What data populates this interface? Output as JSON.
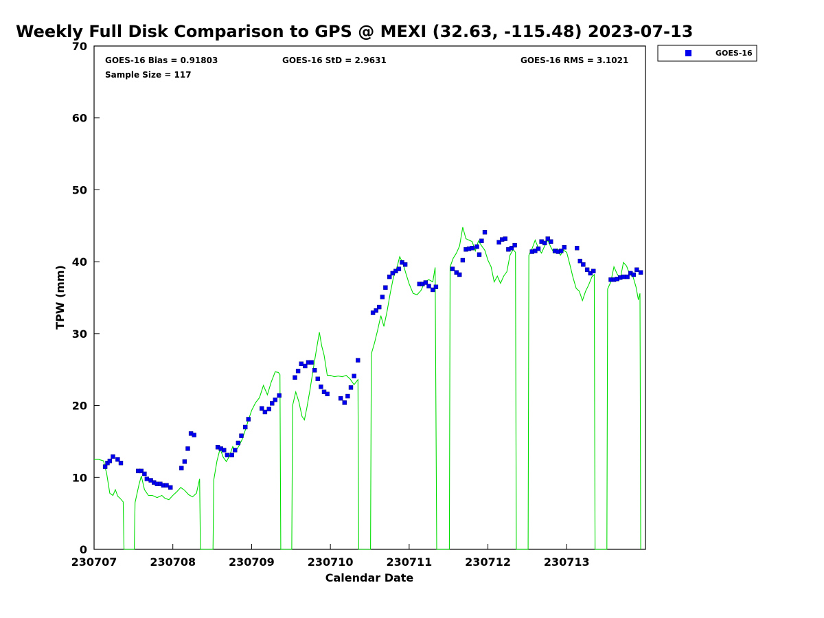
{
  "chart_data": {
    "type": "scatter",
    "title": "Weekly Full Disk Comparison to GPS @ MEXI (32.63, -115.48) 2023-07-13",
    "xlabel": "Calendar Date",
    "ylabel": "TPW (mm)",
    "xlim": [
      0,
      7
    ],
    "ylim": [
      0,
      70
    ],
    "x_ticks": [
      0,
      1,
      2,
      3,
      4,
      5,
      6
    ],
    "x_tick_labels": [
      "230707",
      "230708",
      "230709",
      "230710",
      "230711",
      "230712",
      "230713"
    ],
    "y_ticks": [
      0,
      10,
      20,
      30,
      40,
      50,
      60,
      70
    ],
    "y_tick_labels": [
      "0",
      "10",
      "20",
      "30",
      "40",
      "50",
      "60",
      "70"
    ],
    "stats": {
      "bias": "GOES-16 Bias = 0.91803",
      "std": "GOES-16 StD = 2.9631",
      "rms": "GOES-16 RMS = 3.1021",
      "sample": "Sample Size = 117"
    },
    "legend": {
      "label": "GOES-16",
      "placement": "outside top-right"
    },
    "colors": {
      "goes": "#0000ee",
      "gps": "#00dd00",
      "goes_edge": "#000066"
    },
    "series": [
      {
        "name": "GOES-16",
        "marker": "square",
        "points": [
          [
            0.14,
            11.5
          ],
          [
            0.17,
            12.0
          ],
          [
            0.2,
            12.3
          ],
          [
            0.24,
            12.9
          ],
          [
            0.3,
            12.5
          ],
          [
            0.34,
            12.0
          ],
          [
            0.56,
            10.9
          ],
          [
            0.6,
            10.9
          ],
          [
            0.64,
            10.5
          ],
          [
            0.67,
            9.8
          ],
          [
            0.72,
            9.6
          ],
          [
            0.76,
            9.3
          ],
          [
            0.8,
            9.1
          ],
          [
            0.84,
            9.1
          ],
          [
            0.88,
            8.9
          ],
          [
            0.92,
            8.9
          ],
          [
            0.97,
            8.6
          ],
          [
            1.11,
            11.3
          ],
          [
            1.15,
            12.2
          ],
          [
            1.19,
            14.0
          ],
          [
            1.23,
            16.1
          ],
          [
            1.27,
            15.9
          ],
          [
            1.57,
            14.2
          ],
          [
            1.61,
            14.0
          ],
          [
            1.65,
            13.8
          ],
          [
            1.69,
            13.1
          ],
          [
            1.75,
            13.1
          ],
          [
            1.79,
            13.8
          ],
          [
            1.83,
            14.8
          ],
          [
            1.87,
            15.8
          ],
          [
            1.92,
            17.0
          ],
          [
            1.96,
            18.1
          ],
          [
            2.13,
            19.6
          ],
          [
            2.17,
            19.1
          ],
          [
            2.22,
            19.5
          ],
          [
            2.26,
            20.3
          ],
          [
            2.3,
            20.8
          ],
          [
            2.35,
            21.4
          ],
          [
            2.55,
            23.9
          ],
          [
            2.59,
            24.8
          ],
          [
            2.63,
            25.8
          ],
          [
            2.68,
            25.5
          ],
          [
            2.72,
            26.0
          ],
          [
            2.76,
            26.0
          ],
          [
            2.8,
            24.9
          ],
          [
            2.84,
            23.7
          ],
          [
            2.88,
            22.6
          ],
          [
            2.92,
            21.9
          ],
          [
            2.96,
            21.6
          ],
          [
            3.13,
            21.0
          ],
          [
            3.18,
            20.4
          ],
          [
            3.22,
            21.3
          ],
          [
            3.26,
            22.5
          ],
          [
            3.3,
            24.1
          ],
          [
            3.35,
            26.3
          ],
          [
            3.54,
            32.9
          ],
          [
            3.58,
            33.2
          ],
          [
            3.62,
            33.7
          ],
          [
            3.66,
            35.1
          ],
          [
            3.7,
            36.4
          ],
          [
            3.75,
            37.9
          ],
          [
            3.79,
            38.4
          ],
          [
            3.83,
            38.7
          ],
          [
            3.87,
            39.0
          ],
          [
            3.91,
            39.9
          ],
          [
            3.95,
            39.6
          ],
          [
            4.13,
            36.9
          ],
          [
            4.17,
            36.9
          ],
          [
            4.21,
            37.1
          ],
          [
            4.25,
            36.6
          ],
          [
            4.3,
            36.1
          ],
          [
            4.34,
            36.5
          ],
          [
            4.55,
            39.0
          ],
          [
            4.6,
            38.5
          ],
          [
            4.64,
            38.2
          ],
          [
            4.68,
            40.2
          ],
          [
            4.72,
            41.7
          ],
          [
            4.76,
            41.8
          ],
          [
            4.8,
            41.9
          ],
          [
            4.86,
            42.1
          ],
          [
            4.89,
            41.0
          ],
          [
            4.92,
            42.9
          ],
          [
            4.96,
            44.1
          ],
          [
            5.14,
            42.7
          ],
          [
            5.18,
            43.1
          ],
          [
            5.22,
            43.2
          ],
          [
            5.26,
            41.7
          ],
          [
            5.3,
            41.9
          ],
          [
            5.34,
            42.3
          ],
          [
            5.56,
            41.4
          ],
          [
            5.6,
            41.5
          ],
          [
            5.64,
            41.8
          ],
          [
            5.68,
            42.8
          ],
          [
            5.72,
            42.6
          ],
          [
            5.76,
            43.2
          ],
          [
            5.8,
            42.8
          ],
          [
            5.85,
            41.5
          ],
          [
            5.89,
            41.4
          ],
          [
            5.93,
            41.5
          ],
          [
            5.97,
            42.0
          ],
          [
            6.13,
            41.9
          ],
          [
            6.17,
            40.1
          ],
          [
            6.21,
            39.6
          ],
          [
            6.26,
            38.9
          ],
          [
            6.3,
            38.4
          ],
          [
            6.34,
            38.7
          ],
          [
            6.56,
            37.5
          ],
          [
            6.6,
            37.5
          ],
          [
            6.64,
            37.6
          ],
          [
            6.68,
            37.8
          ],
          [
            6.72,
            37.9
          ],
          [
            6.77,
            37.9
          ],
          [
            6.81,
            38.4
          ],
          [
            6.85,
            38.2
          ],
          [
            6.89,
            38.9
          ],
          [
            6.94,
            38.5
          ]
        ]
      },
      {
        "name": "GPS",
        "marker": "line",
        "points": [
          [
            0.0,
            12.5
          ],
          [
            0.06,
            12.5
          ],
          [
            0.12,
            12.3
          ],
          [
            0.16,
            10.5
          ],
          [
            0.2,
            7.8
          ],
          [
            0.24,
            7.5
          ],
          [
            0.27,
            8.3
          ],
          [
            0.3,
            7.4
          ],
          [
            0.33,
            7.1
          ],
          [
            0.37,
            6.6
          ],
          [
            0.38,
            0
          ],
          [
            0.51,
            0
          ],
          [
            0.52,
            6.5
          ],
          [
            0.57,
            9.0
          ],
          [
            0.6,
            10.2
          ],
          [
            0.64,
            8.3
          ],
          [
            0.69,
            7.5
          ],
          [
            0.74,
            7.5
          ],
          [
            0.8,
            7.2
          ],
          [
            0.86,
            7.5
          ],
          [
            0.9,
            7.1
          ],
          [
            0.95,
            6.9
          ],
          [
            1.0,
            7.5
          ],
          [
            1.05,
            8.0
          ],
          [
            1.1,
            8.6
          ],
          [
            1.15,
            8.2
          ],
          [
            1.2,
            7.6
          ],
          [
            1.25,
            7.3
          ],
          [
            1.3,
            7.8
          ],
          [
            1.34,
            9.8
          ],
          [
            1.35,
            0
          ],
          [
            1.51,
            0
          ],
          [
            1.52,
            9.7
          ],
          [
            1.56,
            12.3
          ],
          [
            1.6,
            14.0
          ],
          [
            1.64,
            12.8
          ],
          [
            1.68,
            12.2
          ],
          [
            1.72,
            13.0
          ],
          [
            1.76,
            14.3
          ],
          [
            1.8,
            13.7
          ],
          [
            1.84,
            14.4
          ],
          [
            1.88,
            15.3
          ],
          [
            1.92,
            16.6
          ],
          [
            1.96,
            18.0
          ],
          [
            2.0,
            19.3
          ],
          [
            2.05,
            20.4
          ],
          [
            2.1,
            21.1
          ],
          [
            2.15,
            22.8
          ],
          [
            2.2,
            21.5
          ],
          [
            2.25,
            23.3
          ],
          [
            2.3,
            24.7
          ],
          [
            2.34,
            24.6
          ],
          [
            2.36,
            24.3
          ],
          [
            2.37,
            0
          ],
          [
            2.51,
            0
          ],
          [
            2.52,
            20.0
          ],
          [
            2.56,
            21.9
          ],
          [
            2.6,
            20.5
          ],
          [
            2.64,
            18.5
          ],
          [
            2.67,
            18.0
          ],
          [
            2.7,
            19.6
          ],
          [
            2.74,
            22.1
          ],
          [
            2.78,
            24.9
          ],
          [
            2.82,
            27.6
          ],
          [
            2.86,
            30.2
          ],
          [
            2.89,
            28.3
          ],
          [
            2.92,
            27.0
          ],
          [
            2.96,
            24.2
          ],
          [
            3.0,
            24.2
          ],
          [
            3.05,
            24.0
          ],
          [
            3.1,
            24.1
          ],
          [
            3.15,
            24.0
          ],
          [
            3.2,
            24.2
          ],
          [
            3.25,
            23.7
          ],
          [
            3.3,
            22.9
          ],
          [
            3.35,
            23.6
          ],
          [
            3.36,
            0
          ],
          [
            3.51,
            0
          ],
          [
            3.52,
            27.2
          ],
          [
            3.56,
            28.7
          ],
          [
            3.6,
            30.5
          ],
          [
            3.64,
            32.5
          ],
          [
            3.68,
            31.0
          ],
          [
            3.72,
            33.1
          ],
          [
            3.76,
            35.6
          ],
          [
            3.8,
            37.8
          ],
          [
            3.84,
            39.0
          ],
          [
            3.88,
            40.7
          ],
          [
            3.92,
            39.8
          ],
          [
            3.96,
            38.3
          ],
          [
            4.0,
            36.9
          ],
          [
            4.05,
            35.6
          ],
          [
            4.1,
            35.4
          ],
          [
            4.15,
            36.0
          ],
          [
            4.2,
            37.2
          ],
          [
            4.25,
            37.5
          ],
          [
            4.3,
            37.2
          ],
          [
            4.33,
            39.2
          ],
          [
            4.35,
            0
          ],
          [
            4.51,
            0
          ],
          [
            4.52,
            39.3
          ],
          [
            4.56,
            40.5
          ],
          [
            4.6,
            41.2
          ],
          [
            4.64,
            42.2
          ],
          [
            4.68,
            44.8
          ],
          [
            4.72,
            43.2
          ],
          [
            4.76,
            43.0
          ],
          [
            4.8,
            42.8
          ],
          [
            4.84,
            41.5
          ],
          [
            4.88,
            42.9
          ],
          [
            4.92,
            42.2
          ],
          [
            4.96,
            41.6
          ],
          [
            5.0,
            40.2
          ],
          [
            5.04,
            39.3
          ],
          [
            5.08,
            37.2
          ],
          [
            5.12,
            38.0
          ],
          [
            5.16,
            37.0
          ],
          [
            5.2,
            38.0
          ],
          [
            5.24,
            38.6
          ],
          [
            5.28,
            40.9
          ],
          [
            5.32,
            41.7
          ],
          [
            5.35,
            41.3
          ],
          [
            5.36,
            0
          ],
          [
            5.51,
            0
          ],
          [
            5.52,
            40.9
          ],
          [
            5.56,
            41.8
          ],
          [
            5.6,
            43.0
          ],
          [
            5.64,
            41.9
          ],
          [
            5.68,
            41.2
          ],
          [
            5.72,
            42.2
          ],
          [
            5.76,
            43.0
          ],
          [
            5.8,
            42.0
          ],
          [
            5.84,
            41.2
          ],
          [
            5.88,
            41.8
          ],
          [
            5.92,
            40.9
          ],
          [
            5.96,
            41.6
          ],
          [
            6.0,
            41.3
          ],
          [
            6.04,
            39.6
          ],
          [
            6.08,
            37.8
          ],
          [
            6.12,
            36.3
          ],
          [
            6.16,
            35.9
          ],
          [
            6.2,
            34.6
          ],
          [
            6.24,
            35.9
          ],
          [
            6.28,
            36.8
          ],
          [
            6.32,
            37.9
          ],
          [
            6.35,
            38.2
          ],
          [
            6.36,
            0
          ],
          [
            6.51,
            0
          ],
          [
            6.52,
            36.2
          ],
          [
            6.56,
            37.2
          ],
          [
            6.6,
            39.3
          ],
          [
            6.64,
            38.3
          ],
          [
            6.68,
            37.6
          ],
          [
            6.72,
            39.9
          ],
          [
            6.76,
            39.4
          ],
          [
            6.8,
            38.2
          ],
          [
            6.84,
            38.0
          ],
          [
            6.88,
            36.5
          ],
          [
            6.91,
            34.7
          ],
          [
            6.93,
            35.6
          ],
          [
            6.94,
            0
          ]
        ]
      }
    ]
  }
}
